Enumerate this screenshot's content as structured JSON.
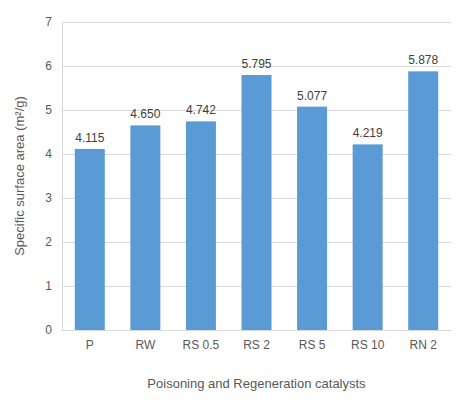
{
  "chart_data": {
    "type": "bar",
    "x_label": "Poisoning and Regeneration catalysts",
    "y_label": "Specific surface area (m²/g)",
    "categories": [
      "P",
      "RW",
      "RS 0.5",
      "RS 2",
      "RS 5",
      "RS 10",
      "RN 2"
    ],
    "values": [
      4.115,
      4.65,
      4.742,
      5.795,
      5.077,
      4.219,
      5.878
    ],
    "value_labels": [
      "4.115",
      "4.650",
      "4.742",
      "5.795",
      "5.077",
      "4.219",
      "5.878"
    ],
    "color": "#5b9bd5",
    "ylim": [
      0,
      7
    ],
    "yticks": [
      0,
      1,
      2,
      3,
      4,
      5,
      6,
      7
    ],
    "grid": true,
    "data_labels": true
  }
}
